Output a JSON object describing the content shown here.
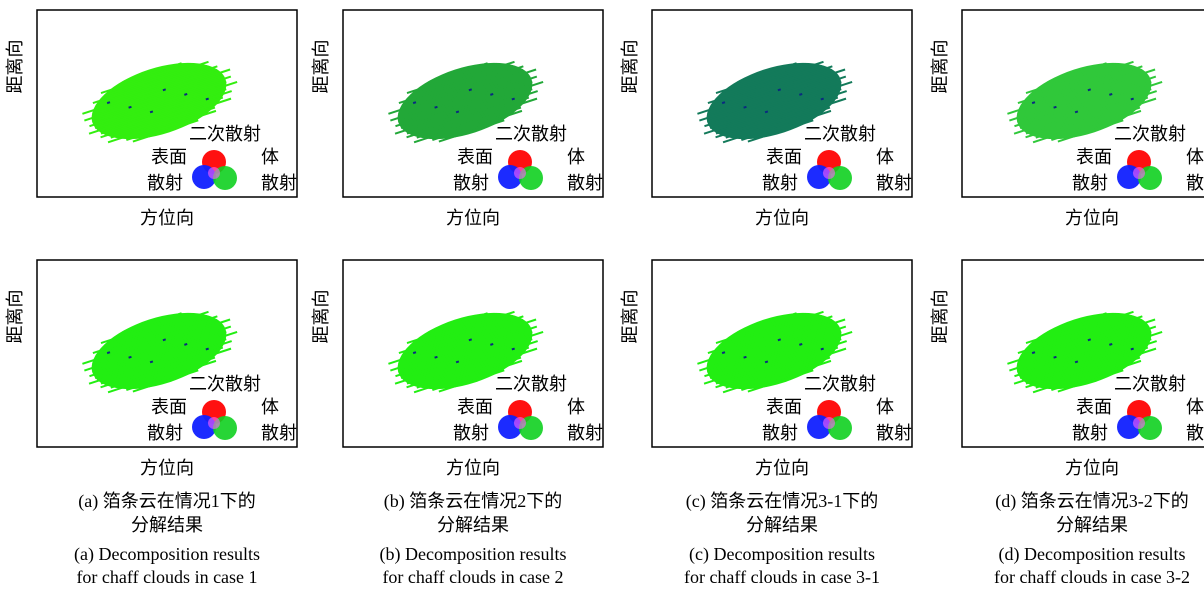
{
  "panels": [
    {
      "y_label": "距离向",
      "x_label": "方位向",
      "legend": {
        "double": "二次散射",
        "surface": "表面",
        "surface_2": "散射",
        "volume": "体",
        "volume_2": "散射"
      }
    },
    {
      "y_label": "距离向",
      "x_label": "方位向",
      "legend": {
        "double": "二次散射",
        "surface": "表面",
        "surface_2": "散射",
        "volume": "体",
        "volume_2": "散射"
      }
    },
    {
      "y_label": "距离向",
      "x_label": "方位向",
      "legend": {
        "double": "二次散射",
        "surface": "表面",
        "surface_2": "散射",
        "volume": "体",
        "volume_2": "散射"
      }
    },
    {
      "y_label": "距离向",
      "x_label": "方位向",
      "legend": {
        "double": "二次散射",
        "surface": "表面",
        "surface_2": "散射",
        "volume": "体",
        "volume_2": "散射"
      }
    },
    {
      "y_label": "距离向",
      "x_label": "方位向",
      "legend": {
        "double": "二次散射",
        "surface": "表面",
        "surface_2": "散射",
        "volume": "体",
        "volume_2": "散射"
      }
    },
    {
      "y_label": "距离向",
      "x_label": "方位向",
      "legend": {
        "double": "二次散射",
        "surface": "表面",
        "surface_2": "散射",
        "volume": "体",
        "volume_2": "散射"
      }
    },
    {
      "y_label": "距离向",
      "x_label": "方位向",
      "legend": {
        "double": "二次散射",
        "surface": "表面",
        "surface_2": "散射",
        "volume": "体",
        "volume_2": "散射"
      }
    },
    {
      "y_label": "距离向",
      "x_label": "方位向",
      "legend": {
        "double": "二次散射",
        "surface": "表面",
        "surface_2": "散射",
        "volume": "体",
        "volume_2": "散射"
      }
    }
  ],
  "captions": [
    {
      "zh": [
        "(a) 箔条云在情况1下的",
        "分解结果"
      ],
      "en": [
        "(a) Decomposition results",
        "for chaff clouds in case 1"
      ]
    },
    {
      "zh": [
        "(b) 箔条云在情况2下的",
        "分解结果"
      ],
      "en": [
        "(b) Decomposition results",
        "for chaff clouds in case 2"
      ]
    },
    {
      "zh": [
        "(c) 箔条云在情况3-1下的",
        "分解结果"
      ],
      "en": [
        "(c) Decomposition results",
        "for chaff clouds in case 3-1"
      ]
    },
    {
      "zh": [
        "(d) 箔条云在情况3-2下的",
        "分解结果"
      ],
      "en": [
        "(d) Decomposition results",
        "for chaff clouds in case 3-2"
      ]
    }
  ]
}
